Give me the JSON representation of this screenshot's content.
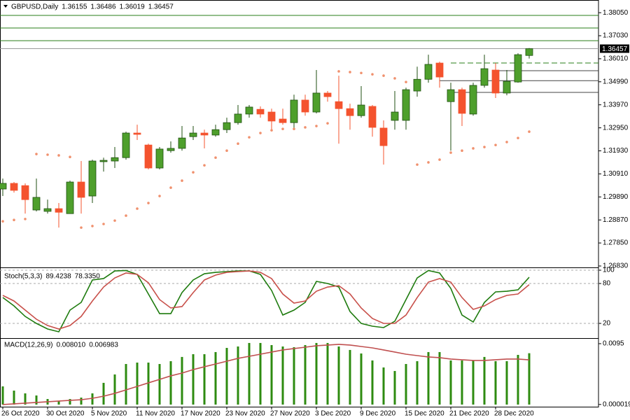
{
  "chart_data": [
    {
      "type": "candlestick",
      "title": "GBPUSD,Daily",
      "categories": [
        "26 Oct 2020",
        null,
        null,
        null,
        "30 Oct 2020",
        null,
        null,
        null,
        "5 Nov 2020",
        null,
        null,
        null,
        "11 Nov 2020",
        null,
        null,
        null,
        "17 Nov 2020",
        null,
        null,
        null,
        "23 Nov 2020",
        null,
        null,
        null,
        "27 Nov 2020",
        null,
        null,
        null,
        "3 Dec 2020",
        null,
        null,
        null,
        "9 Dec 2020",
        null,
        null,
        null,
        "15 Dec 2020",
        null,
        null,
        null,
        "21 Dec 2020",
        null,
        null,
        null,
        "28 Dec 2020",
        null,
        null,
        null
      ],
      "open": [
        1.3024,
        1.3049,
        1.3039,
        1.2931,
        1.2925,
        1.2937,
        1.2915,
        1.3055,
        1.2993,
        1.3145,
        1.3148,
        1.3163,
        1.3272,
        1.3219,
        1.3117,
        1.3194,
        1.3204,
        1.3256,
        1.3272,
        1.3263,
        1.3287,
        1.3318,
        1.3356,
        1.3377,
        1.3365,
        1.3334,
        1.3318,
        1.3418,
        1.3365,
        1.3449,
        1.3411,
        1.338,
        1.3349,
        1.339,
        1.3294,
        1.3328,
        1.3328,
        1.3458,
        1.351,
        1.3582,
        1.3411,
        1.3464,
        1.3356,
        1.3483,
        1.3551,
        1.3449,
        1.3498,
        1.36155
      ],
      "high": [
        1.307,
        1.3055,
        1.3049,
        1.307,
        1.2977,
        1.2962,
        1.3061,
        1.3148,
        1.3154,
        1.3163,
        1.321,
        1.3278,
        1.3309,
        1.3225,
        1.321,
        1.3235,
        1.3303,
        1.3303,
        1.3287,
        1.3309,
        1.334,
        1.3396,
        1.3396,
        1.339,
        1.338,
        1.338,
        1.3442,
        1.3442,
        1.3551,
        1.3458,
        1.3526,
        1.3402,
        1.348,
        1.3396,
        1.3328,
        1.3458,
        1.3473,
        1.3566,
        1.3619,
        1.3588,
        1.3495,
        1.3473,
        1.3495,
        1.3619,
        1.3582,
        1.3551,
        1.3625,
        1.36486
      ],
      "low": [
        1.2993,
        1.3008,
        1.2915,
        1.2925,
        1.2915,
        1.2853,
        1.2915,
        1.2915,
        1.2962,
        1.3101,
        1.3117,
        1.3154,
        1.3241,
        1.3111,
        1.3111,
        1.3185,
        1.3194,
        1.3241,
        1.3204,
        1.3256,
        1.3272,
        1.3309,
        1.334,
        1.334,
        1.3287,
        1.3309,
        1.3287,
        1.3349,
        1.3359,
        1.3411,
        1.3225,
        1.3287,
        1.334,
        1.3256,
        1.3132,
        1.3287,
        1.3287,
        1.3433,
        1.3495,
        1.3473,
        1.3194,
        1.3303,
        1.3349,
        1.3473,
        1.3427,
        1.3439,
        1.3495,
        1.36019
      ],
      "close": [
        1.3049,
        1.3018,
        1.2977,
        1.2987,
        1.2937,
        1.2921,
        1.3055,
        1.2987,
        1.3148,
        1.3151,
        1.3163,
        1.3272,
        1.3266,
        1.3117,
        1.3201,
        1.3204,
        1.325,
        1.3272,
        1.3263,
        1.3287,
        1.3318,
        1.3356,
        1.3387,
        1.3356,
        1.3325,
        1.3318,
        1.3418,
        1.3365,
        1.3449,
        1.3433,
        1.338,
        1.3349,
        1.3396,
        1.3297,
        1.3216,
        1.3365,
        1.3464,
        1.351,
        1.3576,
        1.352,
        1.3464,
        1.3359,
        1.3483,
        1.3557,
        1.3449,
        1.3501,
        1.3619,
        1.36457
      ],
      "sar": [
        1.2881,
        1.2887,
        1.2891,
        1.3179,
        1.3176,
        1.3173,
        1.3166,
        1.2853,
        1.286,
        1.2869,
        1.2884,
        1.2906,
        1.2937,
        1.2962,
        1.2993,
        1.303,
        1.3061,
        1.3098,
        1.3129,
        1.3163,
        1.3194,
        1.3225,
        1.3253,
        1.3272,
        1.3284,
        1.329,
        1.329,
        1.3297,
        1.3303,
        1.3315,
        1.3545,
        1.3542,
        1.3538,
        1.3532,
        1.3526,
        1.3514,
        1.3498,
        1.3132,
        1.3142,
        1.3154,
        1.3185,
        1.3194,
        1.3204,
        1.321,
        1.3219,
        1.3232,
        1.325,
        1.3278
      ],
      "up_color": "#4e9f2c",
      "down_color": "#f4532e",
      "sar_color": "#f0916e",
      "levels": [
        {
          "value": 1.3793,
          "color": "#2a7d18"
        },
        {
          "value": 1.3737,
          "color": "#2a7d18"
        },
        {
          "value": 1.3681,
          "color": "#2a7d18"
        },
        {
          "value": 1.3582,
          "color": "#2a7d18",
          "dash": true,
          "from": 40
        },
        {
          "value": 1.3548,
          "color": "#444444",
          "from": 44
        },
        {
          "value": 1.3504,
          "color": "#444444",
          "from": 39
        },
        {
          "value": 1.3452,
          "color": "#444444",
          "from": 40
        }
      ],
      "ylim": [
        1.2683,
        1.3855
      ],
      "yticks": [
        {
          "value": 1.3805,
          "label": "1.38050"
        },
        {
          "value": 1.3703,
          "label": "1.37030"
        },
        {
          "value": 1.3601,
          "label": "1.36010"
        },
        {
          "value": 1.3499,
          "label": "1.34990"
        },
        {
          "value": 1.3397,
          "label": "1.33970"
        },
        {
          "value": 1.3295,
          "label": "1.32950"
        },
        {
          "value": 1.3193,
          "label": "1.31930"
        },
        {
          "value": 1.3091,
          "label": "1.30910"
        },
        {
          "value": 1.2989,
          "label": "1.29890"
        },
        {
          "value": 1.2887,
          "label": "1.28870"
        },
        {
          "value": 1.2785,
          "label": "1.27850"
        },
        {
          "value": 1.2683,
          "label": "1.26830"
        }
      ],
      "grid": false
    },
    {
      "type": "line",
      "title": "Stoch(5,3,3)",
      "series": [
        {
          "color": "#1e7b0e",
          "values": [
            58.9,
            46.3,
            30.5,
            20,
            11.6,
            7.4,
            40,
            51.6,
            85.3,
            87.4,
            98.9,
            99.5,
            93.7,
            64.2,
            34.7,
            34.7,
            66.3,
            85.3,
            94.7,
            96.8,
            97.9,
            98.9,
            98.9,
            93.7,
            69.5,
            32.6,
            40,
            51.6,
            83.2,
            80,
            74.7,
            37.9,
            20,
            15.8,
            13.7,
            23.2,
            55.8,
            88.4,
            99.5,
            95.8,
            72.6,
            32.6,
            22.1,
            51.6,
            67.4,
            68.4,
            70.5,
            89.4238
          ]
        },
        {
          "color": "#c8504a",
          "values": [
            62.1,
            53.7,
            40,
            26.3,
            16.8,
            11.6,
            16.8,
            30.5,
            53.7,
            74.7,
            88.4,
            95.8,
            93.7,
            81.1,
            55.8,
            43.2,
            45.3,
            66.3,
            85.3,
            92.6,
            96.8,
            97.9,
            98.9,
            96.8,
            87.4,
            64.2,
            50.5,
            53.7,
            68.4,
            74.7,
            76.8,
            64.2,
            43.2,
            27.4,
            20,
            20,
            32.6,
            58.9,
            82.1,
            87.4,
            82.1,
            58.9,
            41.1,
            46.3,
            55.8,
            62.1,
            64.2,
            78.335
          ],
          "value_labels": [
            null,
            null,
            null,
            null,
            null,
            null,
            null,
            null,
            null,
            null,
            null,
            null,
            null,
            null,
            null,
            null,
            null,
            null,
            null,
            null,
            null,
            null,
            null,
            null,
            null,
            null,
            null,
            null,
            null,
            null,
            null,
            null,
            null,
            null,
            null,
            null,
            null,
            null,
            null,
            null,
            null,
            null,
            null,
            null,
            null,
            null,
            null,
            "78.3350"
          ]
        }
      ],
      "ylim": [
        0,
        100
      ],
      "yticks": [
        100,
        80,
        20
      ],
      "grid": true
    },
    {
      "type": "macd",
      "title": "MACD(12,26,9)",
      "series": [
        {
          "type": "bar",
          "color": "#2e8b10",
          "values": [
            0.00284,
            0.00218,
            0.00175,
            0.00142,
            0.00087,
            0.00055,
            0.00087,
            0.00109,
            0.00175,
            0.00339,
            0.0047,
            0.00633,
            0.00655,
            0.00655,
            0.00633,
            0.00677,
            0.00743,
            0.00786,
            0.00786,
            0.00819,
            0.00884,
            0.00906,
            0.00961,
            0.00961,
            0.00928,
            0.00906,
            0.00895,
            0.00928,
            0.00961,
            0.00961,
            0.00906,
            0.00852,
            0.00797,
            0.00688,
            0.00579,
            0.00524,
            0.00633,
            0.00677,
            0.00819,
            0.00819,
            0.00688,
            0.00688,
            0.00688,
            0.00743,
            0.00677,
            0.00677,
            0.00775,
            0.00801
          ],
          "value_labels": [
            null,
            null,
            null,
            null,
            null,
            null,
            null,
            null,
            null,
            null,
            null,
            null,
            null,
            null,
            null,
            null,
            null,
            null,
            null,
            null,
            null,
            null,
            null,
            null,
            null,
            null,
            null,
            null,
            null,
            null,
            null,
            null,
            null,
            null,
            null,
            null,
            null,
            null,
            null,
            null,
            null,
            null,
            null,
            null,
            null,
            null,
            null,
            "0.008010"
          ]
        },
        {
          "type": "line",
          "color": "#c05050",
          "values": [
            0,
            0.00011,
            0.00022,
            0.00033,
            0.00044,
            0.00055,
            0.00066,
            0.00076,
            0.00098,
            0.00131,
            0.00175,
            0.00229,
            0.00284,
            0.00339,
            0.00393,
            0.00448,
            0.00491,
            0.00546,
            0.0059,
            0.00633,
            0.00677,
            0.00721,
            0.00753,
            0.00786,
            0.00819,
            0.00852,
            0.00874,
            0.00895,
            0.00917,
            0.00928,
            0.00939,
            0.00928,
            0.00906,
            0.00884,
            0.00852,
            0.00819,
            0.00786,
            0.00764,
            0.00743,
            0.00732,
            0.0071,
            0.00699,
            0.00688,
            0.00688,
            0.00699,
            0.0071,
            0.0071,
            0.006983
          ]
        }
      ],
      "ylim": [
        -0.00033,
        0.01026
      ],
      "yticks": [
        0.0095,
        1.9e-05
      ],
      "grid": false
    }
  ]
}
